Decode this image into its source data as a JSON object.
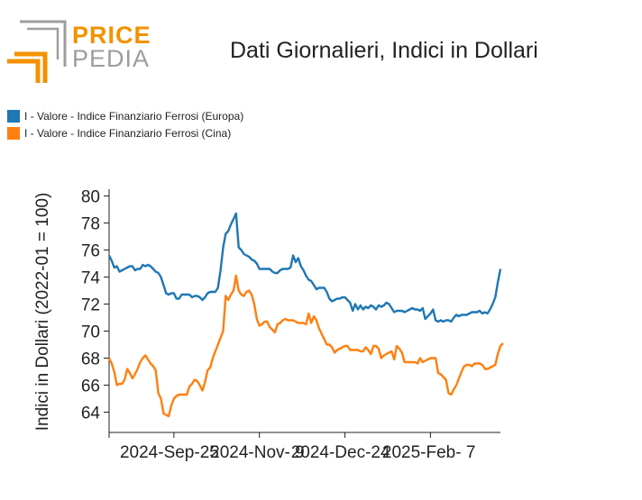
{
  "logo": {
    "line1": "PRICE",
    "line2": "PEDIA",
    "icon": "pricepedia-logo-icon"
  },
  "colors": {
    "europe": "#1f77b4",
    "china": "#ff7f0e",
    "logo_orange": "#f39200",
    "logo_gray": "#9d9d9c"
  },
  "chart_data": {
    "type": "line",
    "title": "Dati Giornalieri, Indici in Dollari",
    "ylabel": "Indici in Dollari (2022-01 = 100)",
    "xlabel": "",
    "ylim": [
      62.5,
      80.5
    ],
    "yticks": [
      64,
      66,
      68,
      70,
      72,
      74,
      76,
      78,
      80
    ],
    "xticks": [
      {
        "label": "2024-Sep-25",
        "index": 25
      },
      {
        "label": "2024-Nov- 9",
        "index": 58
      },
      {
        "label": "2024-Dec-24",
        "index": 91
      },
      {
        "label": "2025-Feb- 7",
        "index": 124
      }
    ],
    "legend_position": "top-left",
    "grid": false,
    "series": [
      {
        "name": "I - Valore - Indice Finanziario Ferrosi (Europa)",
        "values": [
          75.6,
          75.2,
          74.7,
          74.8,
          74.4,
          74.5,
          74.6,
          74.7,
          74.8,
          74.8,
          74.5,
          74.6,
          74.6,
          74.9,
          74.8,
          74.9,
          74.8,
          74.6,
          74.4,
          74.3,
          74.0,
          73.4,
          72.8,
          72.7,
          72.8,
          72.8,
          72.4,
          72.4,
          72.7,
          72.7,
          72.7,
          72.7,
          72.5,
          72.6,
          72.6,
          72.5,
          72.3,
          72.5,
          72.8,
          72.9,
          72.9,
          72.9,
          73.2,
          74.5,
          76.2,
          77.2,
          77.4,
          77.9,
          78.3,
          78.7,
          76.2,
          76.0,
          75.7,
          75.6,
          75.5,
          75.3,
          75.2,
          75.0,
          74.6,
          74.6,
          74.6,
          74.6,
          74.6,
          74.4,
          74.3,
          74.3,
          74.5,
          74.6,
          74.6,
          74.6,
          74.7,
          75.6,
          75.1,
          75.4,
          74.8,
          74.5,
          74.1,
          73.8,
          73.7,
          73.4,
          73.1,
          73.2,
          73.2,
          73.2,
          72.9,
          72.4,
          72.2,
          72.3,
          72.4,
          72.4,
          72.5,
          72.5,
          72.3,
          72.1,
          71.5,
          72.0,
          71.6,
          71.9,
          71.6,
          71.8,
          71.7,
          71.9,
          71.8,
          71.6,
          71.9,
          71.8,
          71.9,
          72.1,
          72.0,
          71.7,
          71.4,
          71.5,
          71.5,
          71.5,
          71.4,
          71.5,
          71.6,
          71.7,
          71.6,
          71.6,
          71.5,
          71.7,
          70.9,
          71.1,
          71.3,
          71.6,
          70.8,
          70.7,
          70.8,
          70.7,
          70.8,
          70.8,
          70.7,
          71.0,
          71.2,
          71.1,
          71.2,
          71.2,
          71.2,
          71.3,
          71.4,
          71.4,
          71.4,
          71.5,
          71.3,
          71.4,
          71.3,
          71.6,
          72.0,
          72.5,
          73.6,
          74.6
        ]
      },
      {
        "name": "I - Valore - Indice Finanziario Ferrosi (Cina)",
        "values": [
          68.0,
          67.6,
          67.0,
          66.0,
          66.1,
          66.1,
          66.4,
          67.2,
          66.9,
          66.5,
          66.8,
          67.2,
          67.7,
          68.0,
          68.2,
          67.9,
          67.6,
          67.4,
          67.1,
          65.4,
          65.0,
          63.9,
          63.8,
          63.7,
          64.5,
          65.0,
          65.2,
          65.3,
          65.3,
          65.3,
          65.3,
          65.9,
          66.1,
          66.4,
          66.3,
          66.0,
          65.6,
          66.2,
          67.1,
          67.3,
          68.0,
          68.5,
          69.0,
          69.5,
          70.0,
          72.6,
          72.3,
          72.7,
          73.0,
          74.1,
          73.0,
          72.7,
          72.6,
          72.9,
          73.0,
          72.7,
          72.0,
          70.9,
          70.4,
          70.5,
          70.7,
          70.7,
          70.3,
          70.1,
          69.9,
          70.5,
          70.6,
          70.8,
          70.9,
          70.8,
          70.8,
          70.8,
          70.7,
          70.6,
          70.6,
          70.6,
          70.5,
          71.3,
          70.6,
          71.1,
          70.8,
          70.2,
          69.8,
          69.4,
          69.0,
          69.0,
          68.8,
          68.4,
          68.6,
          68.7,
          68.8,
          68.9,
          68.9,
          68.6,
          68.6,
          68.6,
          68.6,
          68.5,
          68.5,
          68.8,
          68.6,
          68.3,
          68.9,
          68.9,
          68.7,
          68.0,
          68.2,
          68.3,
          68.4,
          68.5,
          67.9,
          68.9,
          68.7,
          68.4,
          67.7,
          67.7,
          67.7,
          67.7,
          67.7,
          67.6,
          68.0,
          67.7,
          67.8,
          67.9,
          68.0,
          68.0,
          68.0,
          66.9,
          66.8,
          66.6,
          66.4,
          65.4,
          65.3,
          65.7,
          66.0,
          66.5,
          67.0,
          67.4,
          67.5,
          67.5,
          67.4,
          67.6,
          67.6,
          67.6,
          67.5,
          67.2,
          67.2,
          67.3,
          67.4,
          67.5,
          68.3,
          68.9,
          69.1
        ]
      }
    ]
  }
}
